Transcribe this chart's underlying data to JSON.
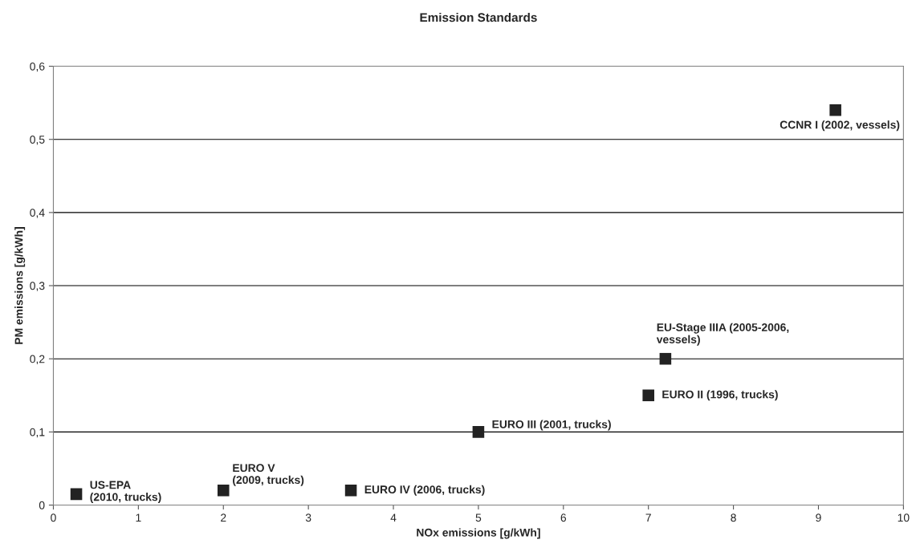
{
  "chart_data": {
    "type": "scatter",
    "title": "Emission Standards",
    "xlabel": "NOx emissions [g/kWh]",
    "ylabel": "PM emissions [g/kWh]",
    "x": [
      0.27,
      2,
      3.5,
      5,
      7,
      7.2,
      9.2
    ],
    "series": [
      {
        "color": "#222222",
        "values": [
          0.015,
          0.02,
          0.02,
          0.1,
          0.15,
          0.2,
          0.54
        ]
      }
    ],
    "xlim": [
      0,
      10
    ],
    "xticks": [
      0,
      1,
      2,
      3,
      4,
      5,
      6,
      7,
      8,
      9,
      10
    ],
    "ylim": [
      0,
      0.6
    ],
    "yticks": [
      {
        "value": 0,
        "label": "0"
      },
      {
        "value": 0.1,
        "label": "0,1"
      },
      {
        "value": 0.2,
        "label": "0,2"
      },
      {
        "value": 0.3,
        "label": "0,3"
      },
      {
        "value": 0.4,
        "label": "0,4"
      },
      {
        "value": 0.5,
        "label": "0,5"
      },
      {
        "value": 0.6,
        "label": "0,6"
      }
    ],
    "grid": "y",
    "marker": "square",
    "legend": false,
    "annotations": [
      {
        "text": "US-EPA\n(2010, trucks)",
        "x": 0.27,
        "y": 0.015
      },
      {
        "text": "EURO V\n(2009, trucks)",
        "x": 2,
        "y": 0.02
      },
      {
        "text": "EURO IV (2006, trucks)",
        "x": 3.5,
        "y": 0.02
      },
      {
        "text": "EURO III (2001, trucks)",
        "x": 5,
        "y": 0.1
      },
      {
        "text": "EURO II (1996, trucks)",
        "x": 7,
        "y": 0.15
      },
      {
        "text": "EU-Stage IIIA (2005-2006,\nvessels)",
        "x": 7.2,
        "y": 0.2
      },
      {
        "text": "CCNR I (2002, vessels)",
        "x": 9.2,
        "y": 0.54
      }
    ]
  }
}
